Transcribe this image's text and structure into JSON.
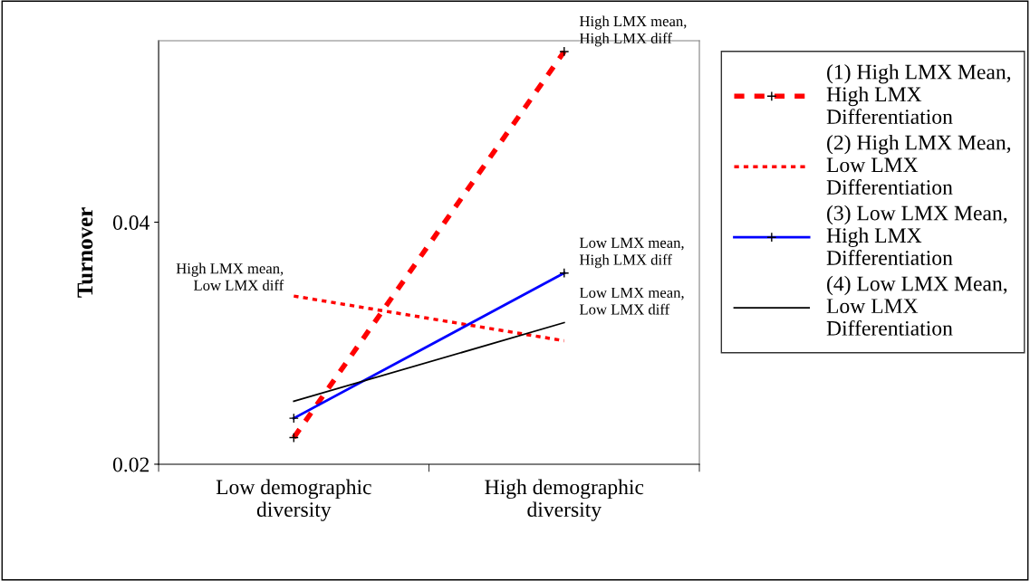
{
  "chart_data": {
    "type": "line",
    "ylabel": "Turnover",
    "categories": [
      "Low demographic\ndiversity",
      "High demographic\ndiversity"
    ],
    "ylim": [
      0.02,
      0.055
    ],
    "yticks": [
      0.02,
      0.04
    ],
    "grid": false,
    "legend": "right",
    "series": [
      {
        "name": "(1) High LMX Mean,\nHigh LMX\nDifferentiation",
        "color": "#ff0000",
        "values": [
          0.0222,
          0.0541
        ],
        "line_style": "dashed",
        "marker": "cross"
      },
      {
        "name": "(2) High LMX Mean,\nLow LMX\nDifferentiation",
        "color": "#ff0000",
        "values": [
          0.0339,
          0.0302
        ],
        "line_style": "dotted"
      },
      {
        "name": "(3) Low LMX Mean,\nHigh LMX\nDifferentiation",
        "color": "#0000ff",
        "values": [
          0.0238,
          0.0358
        ],
        "line_style": "solid",
        "marker": "cross"
      },
      {
        "name": "(4) Low LMX Mean,\nLow LMX\nDifferentiation",
        "color": "#000000",
        "values": [
          0.0252,
          0.0317
        ],
        "line_style": "solid"
      }
    ],
    "annotations": [
      {
        "text": "High LMX mean,\nHigh LMX diff",
        "x": "High demographic\ndiversity",
        "y": 0.0541
      },
      {
        "text": "Low LMX mean,\nHigh LMX diff",
        "x": "High demographic\ndiversity",
        "y": 0.0358
      },
      {
        "text": "Low LMX mean,\nLow LMX diff",
        "x": "High demographic\ndiversity",
        "y": 0.0317
      },
      {
        "text": "High LMX mean,\nLow LMX diff",
        "x": "Low demographic\ndiversity",
        "y": 0.0339
      }
    ]
  }
}
